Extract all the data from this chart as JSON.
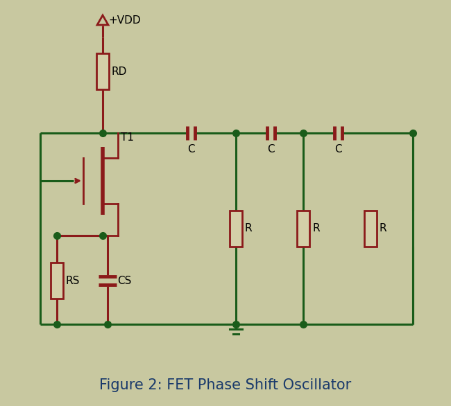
{
  "bg_color": "#c8c8a0",
  "wire_color": "#1a5c1a",
  "comp_color": "#8b1a1a",
  "comp_fill": "#d4cfa8",
  "dot_color": "#1a5c1a",
  "title": "Figure 2: FET Phase Shift Oscillator",
  "title_fontsize": 15,
  "title_color": "#1a3a6b",
  "label_color": "#000000",
  "label_fontsize": 11,
  "vdd_label": "+VDD",
  "rd_label": "RD",
  "t1_label": "T1",
  "rs_label": "RS",
  "cs_label": "CS",
  "c_labels": [
    "C",
    "C",
    "C"
  ],
  "r_labels": [
    "R",
    "R",
    "R"
  ],
  "figw": 6.5,
  "figh": 5.86,
  "dpi": 100
}
